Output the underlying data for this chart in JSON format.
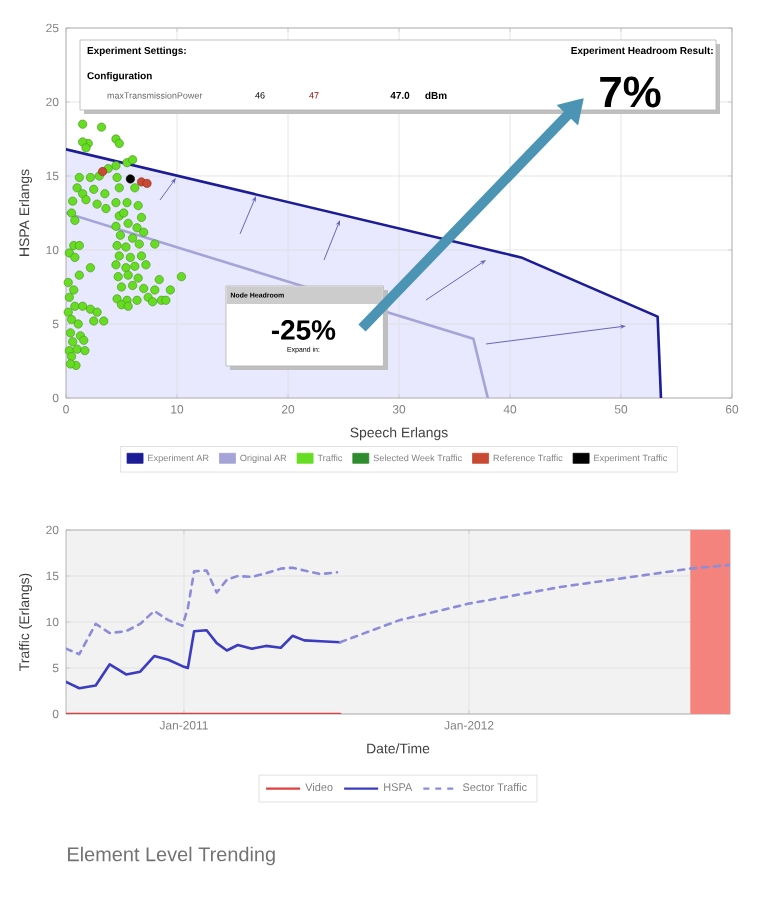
{
  "chart_data": [
    {
      "type": "scatter",
      "xlabel": "Speech Erlangs",
      "ylabel": "HSPA Erlangs",
      "xlim": [
        0,
        60
      ],
      "ylim": [
        0,
        25
      ],
      "xticks": [
        0,
        10,
        20,
        30,
        40,
        50,
        60
      ],
      "yticks": [
        0,
        5,
        10,
        15,
        20,
        25
      ],
      "grid": true,
      "legend": "bottom",
      "series": [
        {
          "name": "Experiment AR",
          "type": "line",
          "color": "#1c1c96",
          "x": [
            0,
            41,
            53.3,
            53.6
          ],
          "values": [
            16.8,
            9.5,
            5.5,
            0
          ]
        },
        {
          "name": "Original AR",
          "type": "line",
          "color": "#a4a4d8",
          "x": [
            0,
            36.7,
            38
          ],
          "values": [
            12.5,
            4,
            0
          ]
        },
        {
          "name": "Traffic",
          "color": "#66dd22",
          "marker": "circle",
          "x": [
            1.5,
            3.2,
            2,
            1.5,
            1.8,
            1.2,
            2.2,
            1,
            1.5,
            1.8,
            0.6,
            0.5,
            0.8,
            2.5,
            2.8,
            0.7,
            1.2,
            0.3,
            0.8,
            2.2,
            1.2,
            0.2,
            0.7,
            0.3,
            0.8,
            0.2,
            1.5,
            2.2,
            2.8,
            0.5,
            1.1,
            2.5,
            3.4,
            0.4,
            1.3,
            0.6,
            1.6,
            0.3,
            1.0,
            0.5,
            0.9,
            0.4,
            1.7,
            4.5,
            4.8,
            5.5,
            6,
            4.5,
            3.8,
            4.6,
            3,
            3.5,
            4.8,
            6.2,
            4.5,
            5.5,
            6.5,
            3.6,
            4.8,
            5.2,
            6.8,
            4.5,
            5.6,
            6.4,
            4.9,
            6.0,
            7,
            4.6,
            5.4,
            6.6,
            8,
            4.8,
            5.8,
            6.8,
            4.5,
            5.4,
            6.2,
            7.2,
            4.7,
            5.6,
            6.5,
            8.4,
            10.4,
            5,
            6,
            7,
            8,
            9.4,
            4.6,
            5.5,
            6.4,
            7.4,
            8.6,
            9.0,
            5.0,
            5.6,
            7.8
          ],
          "values": [
            18.5,
            18.3,
            17.2,
            17.3,
            16.9,
            14.9,
            14.9,
            14.2,
            13.8,
            13.4,
            13.3,
            12.5,
            12.0,
            14.1,
            13.1,
            10.3,
            10.3,
            9.8,
            9.5,
            8.8,
            8.3,
            7.8,
            7.3,
            6.8,
            6.2,
            5.8,
            6.2,
            6.0,
            5.8,
            5.3,
            5.0,
            5.2,
            5.2,
            4.4,
            4.2,
            3.8,
            3.9,
            3.2,
            3.3,
            2.8,
            2.2,
            2.3,
            3.2,
            17.5,
            17.2,
            15.9,
            16.1,
            15.7,
            15.5,
            14.9,
            15.0,
            13.8,
            14.2,
            14.2,
            13.2,
            13.2,
            13.0,
            12.8,
            12.3,
            12.5,
            12.2,
            11.6,
            11.8,
            11.5,
            11.0,
            10.8,
            11.2,
            10.3,
            10.2,
            10.4,
            10.4,
            9.6,
            9.5,
            9.6,
            9.0,
            8.8,
            8.9,
            9.0,
            8.2,
            8.3,
            8.1,
            8.0,
            8.2,
            7.5,
            7.6,
            7.4,
            7.3,
            7.3,
            6.7,
            6.6,
            6.6,
            6.8,
            6.6,
            6.6,
            6.3,
            6.2,
            6.5
          ]
        },
        {
          "name": "Selected Week Traffic",
          "color": "#2e8b2e"
        },
        {
          "name": "Reference Traffic",
          "color": "#c84a32",
          "marker": "circle",
          "x": [
            3.3,
            6.8,
            7.3
          ],
          "values": [
            15.3,
            14.6,
            14.5
          ]
        },
        {
          "name": "Experiment Traffic",
          "color": "#000000",
          "marker": "circle",
          "x": [
            5.8
          ],
          "values": [
            14.8
          ]
        }
      ],
      "annotations": [
        "Experiment Settings:",
        "Configuration",
        "maxTransmissionPower",
        "46",
        "47",
        "47.0",
        "dBm",
        "Experiment Headroom Result:",
        "7%",
        "Node Headroom",
        "-25%",
        "Expand in:"
      ]
    },
    {
      "type": "line",
      "xlabel": "Date/Time",
      "ylabel": "Traffic (Erlangs)",
      "xlim": [
        "2010-08-03",
        "2012-12-01"
      ],
      "ylim": [
        0,
        20
      ],
      "xticks": [
        {
          "value": "2011-01-01",
          "label": "Jan-2011"
        },
        {
          "value": "2012-01-01",
          "label": "Jan-2012"
        }
      ],
      "yticks": [
        0,
        5,
        10,
        15,
        20
      ],
      "grid": true,
      "legend": "bottom",
      "marker": "none",
      "series": [
        {
          "name": "Video",
          "color": "#e04040",
          "line_style": "solid",
          "x": [
            "2010-08-03",
            "2011-07-20"
          ],
          "values": [
            0,
            0
          ]
        },
        {
          "name": "HSPA",
          "color": "#3c3cc0",
          "line_style": "solid",
          "x": [
            "2010-08-03",
            "2010-08-20",
            "2010-09-10",
            "2010-09-28",
            "2010-10-19",
            "2010-11-06",
            "2010-11-24",
            "2010-12-12",
            "2010-12-30",
            "2011-01-06",
            "2011-01-14",
            "2011-01-30",
            "2011-02-12",
            "2011-02-25",
            "2011-03-11",
            "2011-03-29",
            "2011-04-16",
            "2011-05-05",
            "2011-05-20",
            "2011-06-04",
            "2011-06-25",
            "2011-07-20"
          ],
          "values": [
            3.5,
            2.8,
            3.1,
            5.4,
            4.3,
            4.6,
            6.3,
            5.9,
            5.2,
            5.0,
            9.0,
            9.1,
            7.7,
            6.9,
            7.5,
            7.1,
            7.4,
            7.2,
            8.5,
            8.0,
            7.9,
            7.8
          ]
        },
        {
          "name": "Sector Traffic",
          "color": "#8c8cd8",
          "line_style": "dashed",
          "x": [
            "2010-08-03",
            "2010-08-20",
            "2010-09-10",
            "2010-09-28",
            "2010-10-19",
            "2010-11-06",
            "2010-11-24",
            "2010-12-12",
            "2010-12-30",
            "2011-01-06",
            "2011-01-14",
            "2011-01-30",
            "2011-02-12",
            "2011-02-25",
            "2011-03-11",
            "2011-03-29",
            "2011-04-16",
            "2011-05-05",
            "2011-05-20",
            "2011-06-04",
            "2011-06-25",
            "2011-07-16",
            "2011-07-18",
            "2011-07-20",
            "2011-10-04",
            "2012-01-01",
            "2012-04-27",
            "2012-10-11",
            "2012-12-01"
          ],
          "values": [
            7.1,
            6.5,
            9.8,
            8.8,
            9.0,
            9.8,
            11.2,
            10.2,
            9.6,
            11.5,
            15.5,
            15.6,
            13.2,
            14.6,
            15.0,
            14.9,
            15.3,
            15.8,
            15.9,
            15.6,
            15.2,
            15.4,
            null,
            7.8,
            10.2,
            12.0,
            13.8,
            15.8,
            16.2
          ]
        }
      ],
      "bands": [
        {
          "axis": "x",
          "from": "2012-10-11",
          "to": "2012-12-01",
          "color": "#f4837d"
        }
      ],
      "annotations": [
        "Element Level Trending"
      ]
    }
  ]
}
